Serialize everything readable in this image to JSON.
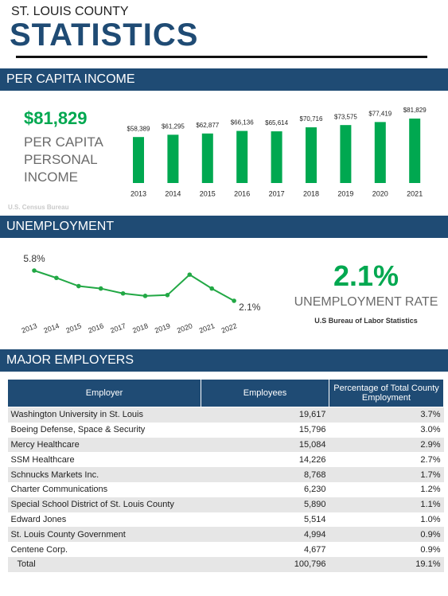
{
  "header": {
    "subtitle": "ST. LOUIS COUNTY",
    "title": "STATISTICS"
  },
  "income": {
    "heading": "PER CAPITA INCOME",
    "value": "$81,829",
    "label": [
      "PER CAPITA",
      "PERSONAL",
      "INCOME"
    ],
    "source": "U.S. Census Bureau",
    "chart": {
      "type": "bar",
      "categories": [
        "2013",
        "2014",
        "2015",
        "2016",
        "2017",
        "2018",
        "2019",
        "2020",
        "2021"
      ],
      "values": [
        58389,
        61295,
        62877,
        66136,
        65614,
        70716,
        73575,
        77419,
        81829
      ],
      "value_labels": [
        "$58,389",
        "$61,295",
        "$62,877",
        "$66,136",
        "$65,614",
        "$70,716",
        "$73,575",
        "$77,419",
        "$81,829"
      ],
      "color": "#00a850"
    }
  },
  "unemployment": {
    "heading": "UNEMPLOYMENT",
    "value": "2.1%",
    "label": "UNEMPLOYMENT RATE",
    "source": "U.S Bureau of Labor Statistics",
    "chart": {
      "type": "line",
      "categories": [
        "2013",
        "2014",
        "2015",
        "2016",
        "2017",
        "2018",
        "2019",
        "2020",
        "2021",
        "2022"
      ],
      "values": [
        5.8,
        4.9,
        3.9,
        3.6,
        3.0,
        2.7,
        2.8,
        5.3,
        3.6,
        2.1
      ],
      "value_labels": [
        "5.8%",
        null,
        null,
        null,
        null,
        null,
        null,
        null,
        null,
        "2.1%"
      ],
      "color": "#22a845"
    }
  },
  "employers": {
    "heading": "MAJOR EMPLOYERS",
    "columns": [
      "Employer",
      "Employees",
      "Percentage of Total County Employment"
    ],
    "rows": [
      [
        "Washington University in St. Louis",
        "19,617",
        "3.7%"
      ],
      [
        "Boeing Defense, Space & Security",
        "15,796",
        "3.0%"
      ],
      [
        "Mercy Healthcare",
        "15,084",
        "2.9%"
      ],
      [
        "SSM Healthcare",
        "14,226",
        "2.7%"
      ],
      [
        "Schnucks Markets Inc.",
        "8,768",
        "1.7%"
      ],
      [
        "Charter Communications",
        "6,230",
        "1.2%"
      ],
      [
        "Special School District of St. Louis County",
        "5,890",
        "1.1%"
      ],
      [
        "Edward Jones",
        "5,514",
        "1.0%"
      ],
      [
        "St. Louis County Government",
        "4,994",
        "0.9%"
      ],
      [
        "Centene Corp.",
        "4,677",
        "0.9%"
      ],
      [
        "Total",
        "100,796",
        "19.1%"
      ]
    ]
  }
}
